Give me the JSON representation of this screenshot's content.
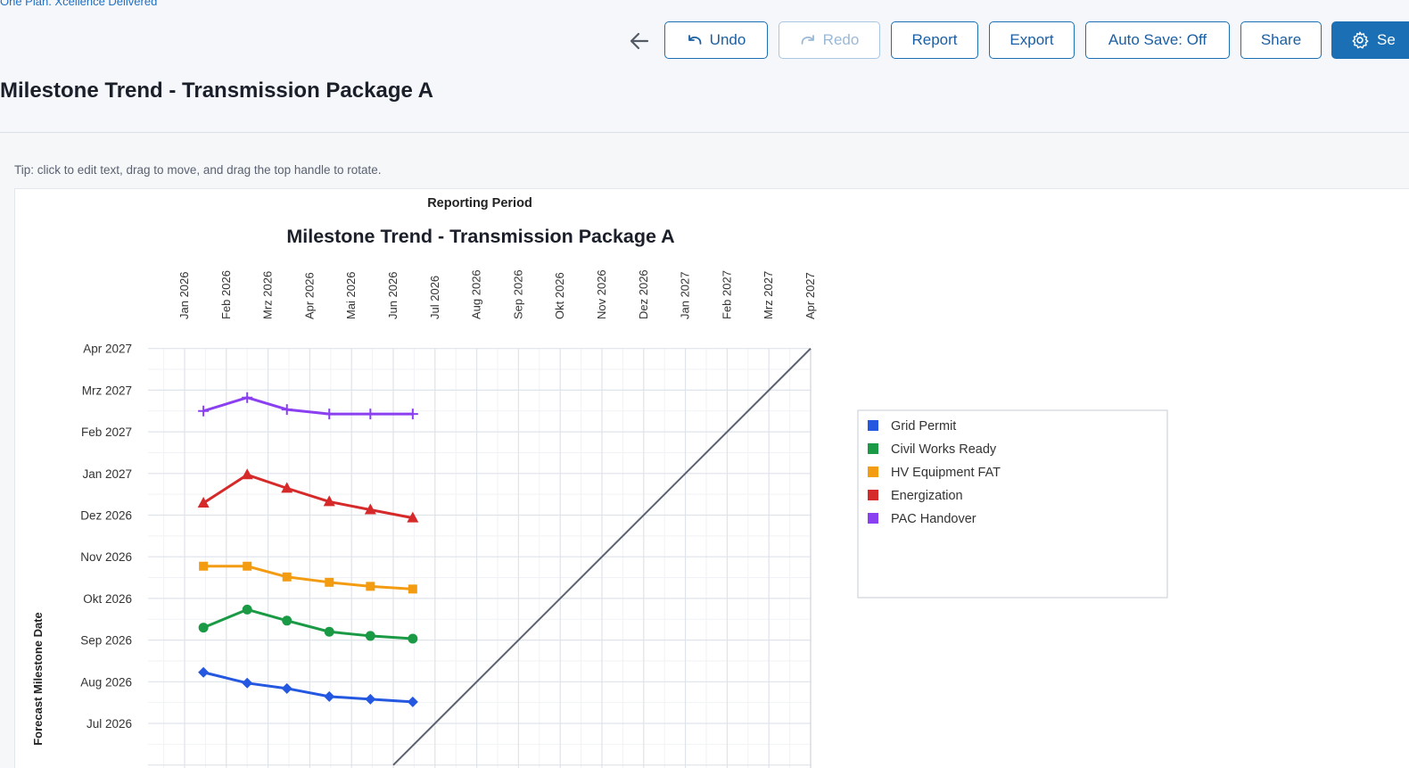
{
  "brand": {
    "tagline": "One Plan. Xcellence Delivered"
  },
  "toolbar": {
    "undo_label": "Undo",
    "redo_label": "Redo",
    "report_label": "Report",
    "export_label": "Export",
    "autosave_label": "Auto Save: Off",
    "share_label": "Share",
    "settings_label": "Se"
  },
  "page": {
    "title": "Milestone Trend - Transmission Package A",
    "tip": "Tip: click to edit text, drag to move, and drag the top handle to rotate."
  },
  "colors": {
    "accent": "#1a6fb5",
    "grid_permit": "#2458e0",
    "civil_works_ready": "#1a9a44",
    "hv_equipment_fat": "#f39c12",
    "energization": "#d62a2a",
    "pac_handover": "#8a3ff0",
    "diagonal": "#5b6170"
  },
  "chart_data": {
    "type": "line",
    "title": "Milestone Trend - Transmission Package A",
    "xlabel": "Reporting Period",
    "ylabel": "Forecast Milestone Date",
    "x_axis_position": "top",
    "x_ticks": [
      "Jan 2026",
      "Feb 2026",
      "Mrz 2026",
      "Apr 2026",
      "Mai 2026",
      "Jun 2026",
      "Jul 2026",
      "Aug 2026",
      "Sep 2026",
      "Okt 2026",
      "Nov 2026",
      "Dez 2026",
      "Jan 2027",
      "Feb 2027",
      "Mrz 2027",
      "Apr 2027"
    ],
    "y_ticks": [
      "Jul 2026",
      "Aug 2026",
      "Sep 2026",
      "Okt 2026",
      "Nov 2026",
      "Dez 2026",
      "Jan 2027",
      "Feb 2027",
      "Mrz 2027",
      "Apr 2027"
    ],
    "xlim": [
      "2026-01-01",
      "2027-04-01"
    ],
    "ylim": [
      "2026-06-01",
      "2027-04-01"
    ],
    "grid": true,
    "legend_position": "right",
    "x": [
      "2026-01-15",
      "2026-02-15",
      "2026-03-15",
      "2026-04-15",
      "2026-05-15",
      "2026-06-15"
    ],
    "series": [
      {
        "name": "Grid Permit",
        "marker": "diamond",
        "color": "#2458e0",
        "values": [
          "2026-08-08",
          "2026-07-31",
          "2026-07-27",
          "2026-07-21",
          "2026-07-19",
          "2026-07-17"
        ]
      },
      {
        "name": "Civil Works Ready",
        "marker": "circle",
        "color": "#1a9a44",
        "values": [
          "2026-09-10",
          "2026-09-23",
          "2026-09-15",
          "2026-09-07",
          "2026-09-04",
          "2026-09-02"
        ]
      },
      {
        "name": "HV Equipment FAT",
        "marker": "square",
        "color": "#f39c12",
        "values": [
          "2026-10-25",
          "2026-10-25",
          "2026-10-17",
          "2026-10-13",
          "2026-10-10",
          "2026-10-08"
        ]
      },
      {
        "name": "Energization",
        "marker": "triangle-up",
        "color": "#d62a2a",
        "values": [
          "2026-12-10",
          "2026-12-31",
          "2026-12-21",
          "2026-12-11",
          "2026-12-05",
          "2026-11-29"
        ]
      },
      {
        "name": "PAC Handover",
        "marker": "cross",
        "color": "#8a3ff0",
        "values": [
          "2027-02-15",
          "2027-02-24",
          "2027-02-16",
          "2027-02-13",
          "2027-02-13",
          "2027-02-13"
        ]
      }
    ],
    "reference_line": "diagonal"
  }
}
